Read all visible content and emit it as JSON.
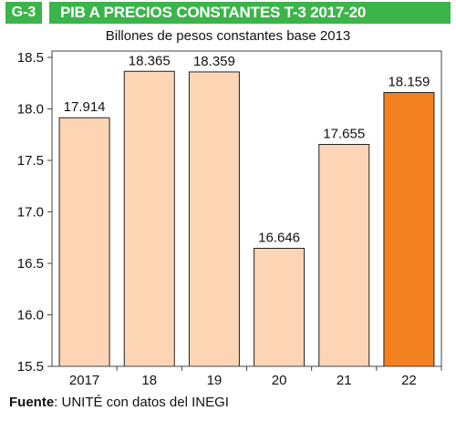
{
  "header": {
    "code": "G-3",
    "title": "PIB A PRECIOS CONSTANTES T-3 2017-20"
  },
  "subtitle": "Billones de pesos constantes base 2013",
  "source": {
    "label": "Fuente",
    "text": ": UNITÉ con datos del INEGI"
  },
  "colors": {
    "header_green": "#3bb54a",
    "bar_light": "#fdd5b4",
    "bar_highlight": "#f58220",
    "bar_border": "#222222"
  },
  "chart_data": {
    "type": "bar",
    "title": "PIB A PRECIOS CONSTANTES T-3 2017-20",
    "subtitle": "Billones de pesos constantes base 2013",
    "categories": [
      "2017",
      "18",
      "19",
      "20",
      "21",
      "22"
    ],
    "values": [
      17.914,
      18.365,
      18.359,
      16.646,
      17.655,
      18.159
    ],
    "value_labels": [
      "17.914",
      "18.365",
      "18.359",
      "16.646",
      "17.655",
      "18.159"
    ],
    "highlight_index": 5,
    "ylim": [
      15.5,
      18.5
    ],
    "yticks": [
      15.5,
      16.0,
      16.5,
      17.0,
      17.5,
      18.0,
      18.5
    ],
    "ytick_labels": [
      "15.5",
      "16.0",
      "16.5",
      "17.0",
      "17.5",
      "18.0",
      "18.5"
    ],
    "xlabel": "",
    "ylabel": "",
    "grid": false,
    "legend": "none"
  }
}
